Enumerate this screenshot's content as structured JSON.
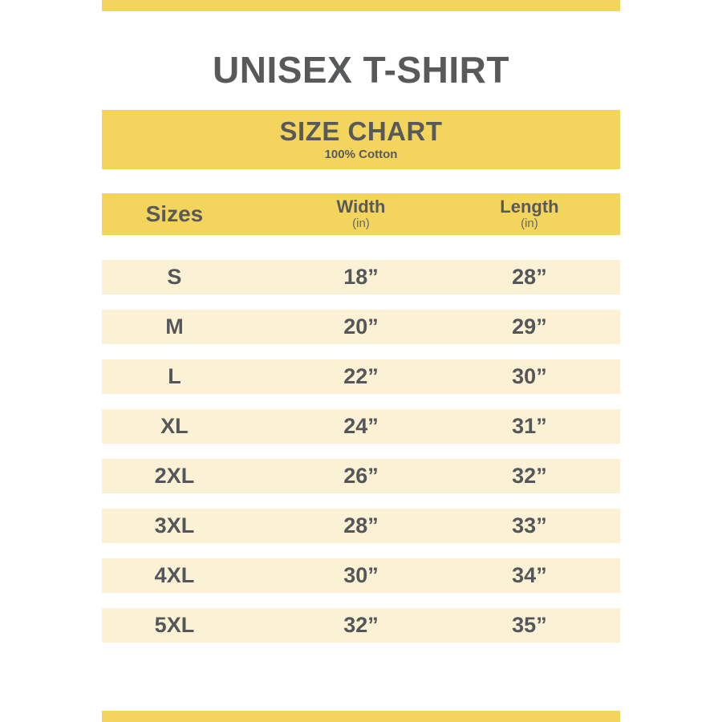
{
  "header": {
    "title": "UNISEX T-SHIRT"
  },
  "banner": {
    "title": "SIZE CHART",
    "subtitle": "100% Cotton"
  },
  "table": {
    "headers": {
      "sizes": "Sizes",
      "width": "Width",
      "width_unit": "(in)",
      "length": "Length",
      "length_unit": "(in)"
    },
    "rows": [
      {
        "size": "S",
        "width": "18”",
        "length": "28”"
      },
      {
        "size": "M",
        "width": "20”",
        "length": "29”"
      },
      {
        "size": "L",
        "width": "22”",
        "length": "30”"
      },
      {
        "size": "XL",
        "width": "24”",
        "length": "31”"
      },
      {
        "size": "2XL",
        "width": "26”",
        "length": "32”"
      },
      {
        "size": "3XL",
        "width": "28”",
        "length": "33”"
      },
      {
        "size": "4XL",
        "width": "30”",
        "length": "34”"
      },
      {
        "size": "5XL",
        "width": "32”",
        "length": "35”"
      }
    ]
  },
  "colors": {
    "accent_yellow": "#F3D55D",
    "row_cream": "#FBF2D6",
    "text_dark_gray": "#58595B",
    "unit_gray": "#66676B"
  },
  "chart_data": {
    "type": "table",
    "title": "SIZE CHART",
    "subtitle": "100% Cotton",
    "product": "UNISEX T-SHIRT",
    "columns": [
      "Sizes",
      "Width (in)",
      "Length (in)"
    ],
    "categories": [
      "S",
      "M",
      "L",
      "XL",
      "2XL",
      "3XL",
      "4XL",
      "5XL"
    ],
    "series": [
      {
        "name": "Width (in)",
        "values": [
          18,
          20,
          22,
          24,
          26,
          28,
          30,
          32
        ]
      },
      {
        "name": "Length (in)",
        "values": [
          28,
          29,
          30,
          31,
          32,
          33,
          34,
          35
        ]
      }
    ]
  }
}
